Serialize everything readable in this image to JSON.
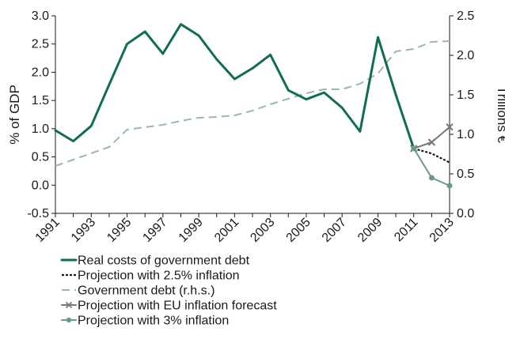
{
  "chart_data": {
    "type": "line",
    "title": "",
    "xlabel": "",
    "ylabel_left": "% of GDP",
    "ylabel_right": "Trillions €",
    "ylim_left": [
      -0.5,
      3.0
    ],
    "ylim_right": [
      0.0,
      2.5
    ],
    "x_ticks": [
      "1991",
      "1993",
      "1995",
      "1997",
      "1999",
      "2001",
      "2003",
      "2005",
      "2007",
      "2009",
      "2011",
      "2013"
    ],
    "y_ticks_left": [
      "-0.5",
      "0.0",
      "0.5",
      "1.0",
      "1.5",
      "2.0",
      "2.5",
      "3.0"
    ],
    "y_ticks_right": [
      "0.0",
      "0.5",
      "1.0",
      "1.5",
      "2.0",
      "2.5"
    ],
    "grid": false,
    "legend_position": "bottom",
    "series": [
      {
        "name": "Real costs of government debt",
        "axis": "left",
        "color": "#0e6e4e",
        "style": "solid",
        "x": [
          1991,
          1992,
          1993,
          1994,
          1995,
          1996,
          1997,
          1998,
          1999,
          2000,
          2001,
          2002,
          2003,
          2004,
          2005,
          2006,
          2007,
          2008,
          2009,
          2010,
          2011
        ],
        "values": [
          0.97,
          0.78,
          1.05,
          1.78,
          2.5,
          2.72,
          2.33,
          2.85,
          2.65,
          2.23,
          1.88,
          2.07,
          2.31,
          1.68,
          1.52,
          1.64,
          1.37,
          0.95,
          2.62,
          1.6,
          0.65
        ]
      },
      {
        "name": "Projection with 2.5% inflation",
        "axis": "left",
        "color": "#1a1a1a",
        "style": "dotted",
        "x": [
          2011,
          2012,
          2013
        ],
        "values": [
          0.65,
          0.56,
          0.4
        ]
      },
      {
        "name": "Government debt (r.h.s.)",
        "axis": "right",
        "color": "#9ab9a9",
        "style": "dashed",
        "x": [
          1991,
          1992,
          1993,
          1994,
          1995,
          1996,
          1997,
          1998,
          1999,
          2000,
          2001,
          2002,
          2003,
          2004,
          2005,
          2006,
          2007,
          2008,
          2009,
          2010,
          2011,
          2012,
          2013
        ],
        "values": [
          0.6,
          0.68,
          0.76,
          0.84,
          1.06,
          1.09,
          1.12,
          1.17,
          1.21,
          1.22,
          1.24,
          1.3,
          1.38,
          1.45,
          1.52,
          1.57,
          1.57,
          1.64,
          1.77,
          2.05,
          2.08,
          2.17,
          2.18
        ]
      },
      {
        "name": "Projection with EU inflation forecast",
        "axis": "left",
        "color": "#777777",
        "style": "solid-marker-x",
        "x": [
          2011,
          2012,
          2013
        ],
        "values": [
          0.65,
          0.76,
          1.03
        ]
      },
      {
        "name": "Projection with 3% inflation",
        "axis": "left",
        "color": "#6b9a85",
        "style": "solid-marker-dot",
        "x": [
          2011,
          2012,
          2013
        ],
        "values": [
          0.65,
          0.13,
          -0.01
        ]
      }
    ]
  }
}
